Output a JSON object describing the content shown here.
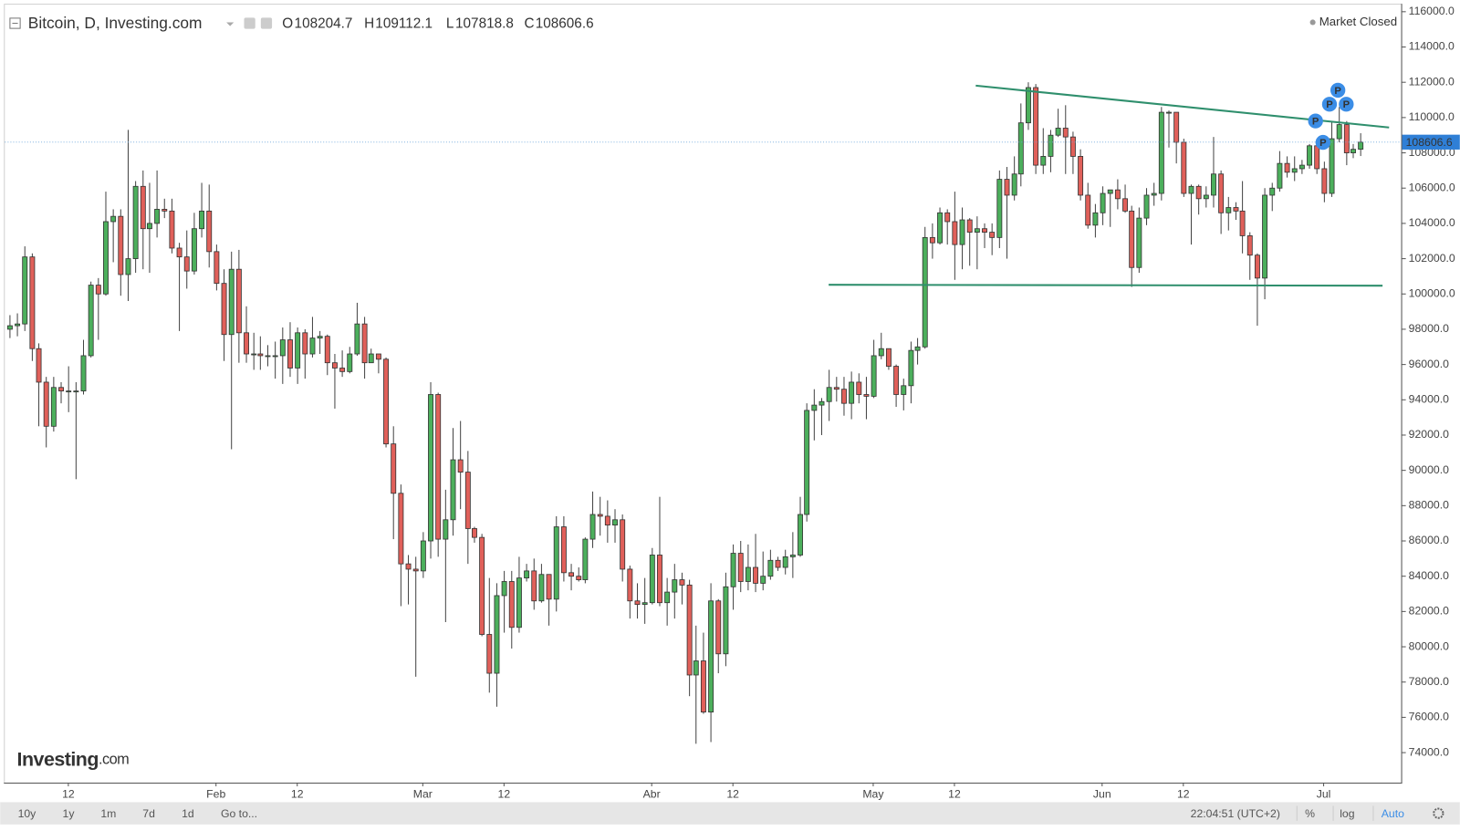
{
  "header": {
    "title": "Bitcoin, D, Investing.com",
    "ohlc_labels": [
      "O",
      "H",
      "L",
      "C"
    ],
    "market_status": "Market Closed"
  },
  "logo": {
    "brand": "Investing",
    "suffix": ".com"
  },
  "toolbar": {
    "ranges": [
      "10y",
      "1y",
      "1m",
      "7d",
      "1d"
    ],
    "goto": "Go to...",
    "clock": "22:04:51 (UTC+2)",
    "percent": "%",
    "log": "log",
    "auto": "Auto"
  },
  "event_marker_label": "P",
  "chart_data": {
    "type": "candlestick",
    "up_color": "#4caf5c",
    "down_color": "#e0605a",
    "log_scale": false,
    "grid": false,
    "xlim": [
      -0.6,
      188.5
    ],
    "xticks": [
      {
        "value": 8,
        "label": "12"
      },
      {
        "value": 28,
        "label": "Feb"
      },
      {
        "value": 39,
        "label": "12"
      },
      {
        "value": 56,
        "label": "Mar"
      },
      {
        "value": 67,
        "label": "12"
      },
      {
        "value": 87,
        "label": "Abr"
      },
      {
        "value": 98,
        "label": "12"
      },
      {
        "value": 117,
        "label": "May"
      },
      {
        "value": 128,
        "label": "12"
      },
      {
        "value": 148,
        "label": "Jun"
      },
      {
        "value": 159,
        "label": "12"
      },
      {
        "value": 178,
        "label": "Jul"
      }
    ],
    "ylim": [
      72300,
      116400
    ],
    "yticks": [
      {
        "value": 74000,
        "label": "74000.0"
      },
      {
        "value": 76000,
        "label": "76000.0"
      },
      {
        "value": 78000,
        "label": "78000.0"
      },
      {
        "value": 80000,
        "label": "80000.0"
      },
      {
        "value": 82000,
        "label": "82000.0"
      },
      {
        "value": 84000,
        "label": "84000.0"
      },
      {
        "value": 86000,
        "label": "86000.0"
      },
      {
        "value": 88000,
        "label": "88000.0"
      },
      {
        "value": 90000,
        "label": "90000.0"
      },
      {
        "value": 92000,
        "label": "92000.0"
      },
      {
        "value": 94000,
        "label": "94000.0"
      },
      {
        "value": 96000,
        "label": "96000.0"
      },
      {
        "value": 98000,
        "label": "98000.0"
      },
      {
        "value": 100000,
        "label": "100000.0"
      },
      {
        "value": 102000,
        "label": "102000.0"
      },
      {
        "value": 104000,
        "label": "104000.0"
      },
      {
        "value": 106000,
        "label": "106000.0"
      },
      {
        "value": 108000,
        "label": "108000.0"
      },
      {
        "value": 110000,
        "label": "110000.0"
      },
      {
        "value": 112000,
        "label": "112000.0"
      },
      {
        "value": 114000,
        "label": "114000.0"
      },
      {
        "value": 116000,
        "label": "116000.0"
      }
    ],
    "open": [
      98000,
      98200,
      98300,
      102100,
      96900,
      95000,
      92500,
      94700,
      94500,
      94500,
      94500,
      96500,
      100500,
      100000,
      104100,
      104400,
      101100,
      102000,
      106100,
      103700,
      104000,
      104800,
      104700,
      102600,
      102100,
      101300,
      103700,
      104700,
      102400,
      100600,
      97700,
      101400,
      97800,
      96600,
      96600,
      96500,
      96500,
      96500,
      97400,
      95800,
      97800,
      96600,
      97500,
      97600,
      96100,
      95800,
      95600,
      96600,
      98300,
      96100,
      96600,
      96300,
      91500,
      88700,
      84700,
      84400,
      84300,
      86000,
      94300,
      86100,
      87200,
      90600,
      89900,
      86700,
      86200,
      80700,
      78500,
      82900,
      83700,
      81100,
      83900,
      84300,
      82600,
      84100,
      82700,
      86800,
      84200,
      84000,
      83800,
      86100,
      87500,
      87400,
      86900,
      87200,
      84400,
      82600,
      82400,
      82500,
      85200,
      82500,
      83100,
      83800,
      83500,
      78400,
      79200,
      76300,
      82600,
      79600,
      83400,
      85300,
      83700,
      84500,
      83600,
      84000,
      84900,
      84500,
      85100,
      85200,
      87500,
      93400,
      93700,
      93900,
      94700,
      94600,
      93800,
      95000,
      94300,
      94200,
      96500,
      96900,
      95900,
      94300,
      94800,
      96800,
      97000,
      103200,
      102900,
      104600,
      104100,
      102800,
      104200,
      103500,
      103700,
      103500,
      103200,
      106500,
      105600,
      106800,
      109700,
      111700,
      107300,
      107800,
      109000,
      109400,
      108900,
      107800,
      105600,
      103900,
      104600,
      105700,
      105900,
      105400,
      104700,
      101500,
      104300,
      105600,
      105700,
      110300,
      110300,
      108600,
      105700,
      106100,
      105400,
      105600,
      106800,
      104600,
      104900,
      104700,
      103300,
      102200,
      100900,
      105600,
      106000,
      107400,
      106900,
      107100,
      107300,
      108400,
      107100,
      105700,
      108800,
      109600,
      108000,
      108204.7
    ],
    "high": [
      98800,
      98900,
      102700,
      102300,
      97200,
      95300,
      95300,
      95000,
      95900,
      95000,
      97400,
      100700,
      100900,
      105800,
      104800,
      104800,
      109300,
      106400,
      107000,
      106300,
      107000,
      105400,
      105400,
      102900,
      103600,
      104600,
      106300,
      106200,
      102800,
      101400,
      102400,
      102500,
      99300,
      97800,
      97600,
      97100,
      97300,
      98100,
      98400,
      98100,
      98000,
      98700,
      97900,
      97700,
      96600,
      96800,
      97000,
      99500,
      98700,
      96900,
      96600,
      96400,
      92500,
      89200,
      85200,
      85100,
      86500,
      95000,
      94400,
      88900,
      92400,
      92800,
      91100,
      86800,
      86400,
      83900,
      83600,
      84300,
      84300,
      85100,
      84700,
      85000,
      84700,
      84100,
      87400,
      87400,
      84700,
      84500,
      86200,
      88800,
      88500,
      88300,
      87800,
      87500,
      84600,
      83600,
      83900,
      85600,
      88500,
      83900,
      84700,
      84200,
      83800,
      81200,
      80800,
      83600,
      82700,
      84200,
      85800,
      86000,
      85800,
      86400,
      85400,
      85500,
      85100,
      85500,
      86500,
      88500,
      93800,
      94600,
      94100,
      95700,
      95300,
      95300,
      95600,
      95500,
      95300,
      97400,
      97800,
      96900,
      96000,
      95200,
      97300,
      97500,
      103800,
      104000,
      104900,
      104800,
      105800,
      104900,
      104300,
      104400,
      104000,
      104000,
      107000,
      107200,
      107800,
      110800,
      112000,
      111900,
      109400,
      109300,
      110500,
      110700,
      109200,
      108200,
      106300,
      105100,
      106100,
      105900,
      106500,
      106200,
      105000,
      104900,
      106000,
      106300,
      110600,
      110400,
      110300,
      108800,
      106200,
      106200,
      106100,
      108900,
      107000,
      105500,
      105200,
      106400,
      103500,
      102300,
      106000,
      106300,
      108100,
      107800,
      107800,
      107600,
      108500,
      108800,
      107500,
      109800,
      110600,
      109800,
      108500,
      109112.1
    ],
    "low": [
      97500,
      97600,
      97900,
      96200,
      92500,
      91300,
      92200,
      93800,
      93300,
      89500,
      94300,
      96400,
      97400,
      99900,
      101800,
      99900,
      99600,
      101200,
      101400,
      101200,
      103200,
      104300,
      102300,
      97900,
      100300,
      101100,
      103200,
      101500,
      100200,
      96200,
      91200,
      96100,
      96100,
      95700,
      95700,
      95900,
      95200,
      94900,
      95300,
      94900,
      95200,
      96400,
      96600,
      95400,
      93500,
      95300,
      95500,
      96500,
      95200,
      96100,
      95500,
      91300,
      86100,
      82300,
      82400,
      78300,
      83900,
      85000,
      85100,
      81400,
      86300,
      87800,
      84700,
      85900,
      80600,
      77400,
      76600,
      80800,
      79900,
      80800,
      83700,
      82100,
      82500,
      81200,
      82000,
      83700,
      83200,
      83700,
      83600,
      85600,
      86300,
      85900,
      85900,
      83700,
      81600,
      81600,
      81300,
      82400,
      82300,
      81200,
      81600,
      82400,
      77200,
      74500,
      76200,
      74600,
      78500,
      78900,
      82100,
      83100,
      83200,
      83100,
      83200,
      83800,
      84300,
      84100,
      83900,
      85100,
      87100,
      91700,
      92000,
      92800,
      93900,
      93100,
      92900,
      93800,
      92900,
      94100,
      96300,
      95700,
      93600,
      93400,
      93800,
      96000,
      96900,
      102000,
      102800,
      102800,
      100800,
      101400,
      101600,
      101400,
      102600,
      102200,
      102600,
      102000,
      105300,
      106100,
      109300,
      106800,
      106800,
      106900,
      108900,
      106800,
      106800,
      105300,
      103700,
      103200,
      103900,
      103800,
      104800,
      104600,
      100400,
      101200,
      103900,
      105000,
      105300,
      108300,
      107400,
      105500,
      102800,
      104500,
      104900,
      104900,
      103400,
      103600,
      104200,
      102300,
      100800,
      98200,
      99700,
      104700,
      105800,
      106600,
      106400,
      106800,
      107100,
      106800,
      105200,
      105500,
      108600,
      107300,
      107700,
      107818.8
    ],
    "close": [
      98200,
      98300,
      102100,
      96900,
      95000,
      92500,
      94700,
      94500,
      94500,
      94500,
      96500,
      100500,
      100000,
      104100,
      104400,
      101100,
      102000,
      106100,
      103700,
      104000,
      104800,
      104700,
      102600,
      102100,
      101300,
      103700,
      104700,
      102400,
      100600,
      97700,
      101400,
      97800,
      96600,
      96600,
      96500,
      96500,
      96500,
      97400,
      95800,
      97800,
      96600,
      97500,
      97600,
      96100,
      95800,
      95600,
      96600,
      98300,
      96100,
      96600,
      96300,
      91500,
      88700,
      84700,
      84400,
      84300,
      86000,
      94300,
      86100,
      87200,
      90600,
      89900,
      86700,
      86200,
      80700,
      78500,
      82900,
      83700,
      81100,
      83900,
      84300,
      82600,
      84100,
      82700,
      86800,
      84200,
      84000,
      83800,
      86100,
      87500,
      87400,
      86900,
      87200,
      84400,
      82600,
      82400,
      82500,
      85200,
      82500,
      83100,
      83800,
      83500,
      78400,
      79200,
      76300,
      82600,
      79600,
      83400,
      85300,
      83700,
      84500,
      83600,
      84000,
      84900,
      84500,
      85100,
      85200,
      87500,
      93400,
      93700,
      93900,
      94700,
      94600,
      93800,
      95000,
      94300,
      94200,
      96500,
      96900,
      95900,
      94300,
      94800,
      96800,
      97000,
      103200,
      102900,
      104600,
      104100,
      102800,
      104200,
      103500,
      103700,
      103500,
      103200,
      106500,
      105600,
      106800,
      109700,
      111700,
      107300,
      107800,
      109000,
      109400,
      108900,
      107800,
      105600,
      103900,
      104600,
      105700,
      105900,
      105400,
      104700,
      101500,
      104300,
      105600,
      105700,
      110300,
      110300,
      108600,
      105700,
      106100,
      105400,
      105600,
      106800,
      104600,
      104900,
      104700,
      103300,
      102200,
      100900,
      105600,
      106000,
      107400,
      106900,
      107100,
      107300,
      108400,
      107100,
      105700,
      108800,
      109600,
      108000,
      108200,
      108606.6
    ]
  }
}
